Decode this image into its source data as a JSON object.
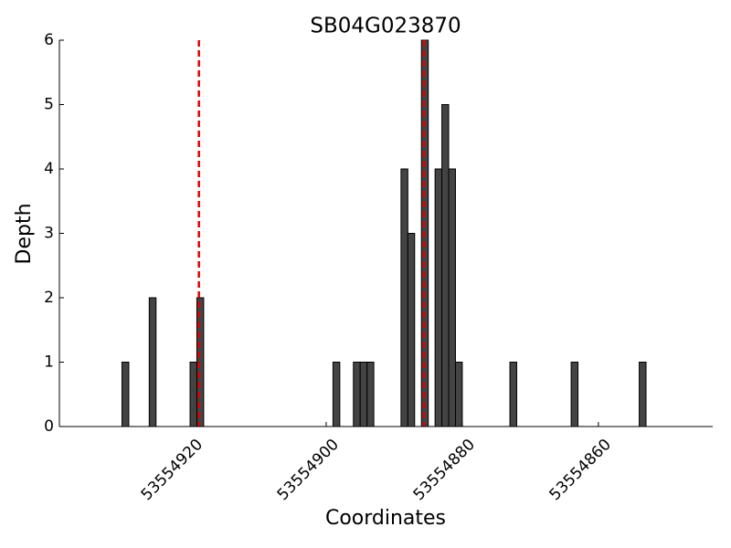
{
  "chart_data": {
    "type": "bar",
    "title": "SB04G023870",
    "x_label": "Coordinates",
    "y_label": "Depth",
    "x": [
      53554930,
      53554926,
      53554920,
      53554919,
      53554899,
      53554896,
      53554895,
      53554894,
      53554889,
      53554888,
      53554886,
      53554884,
      53554883,
      53554882,
      53554881,
      53554873,
      53554864,
      53554854
    ],
    "values": [
      1,
      2,
      1,
      2,
      1,
      1,
      1,
      1,
      4,
      3,
      6,
      4,
      5,
      4,
      1,
      1,
      1,
      1
    ],
    "color": "#444444",
    "edge_color": "#000000",
    "reference_lines": {
      "x": [
        53554918.7,
        53554885.6
      ],
      "color": "#dd0000"
    },
    "xlim": [
      53554939.2,
      53554843.2
    ],
    "xticks": [
      53554920,
      53554900,
      53554880,
      53554860
    ],
    "ylim": [
      0,
      6
    ],
    "yticks": [
      0,
      1,
      2,
      3,
      4,
      5,
      6
    ]
  }
}
